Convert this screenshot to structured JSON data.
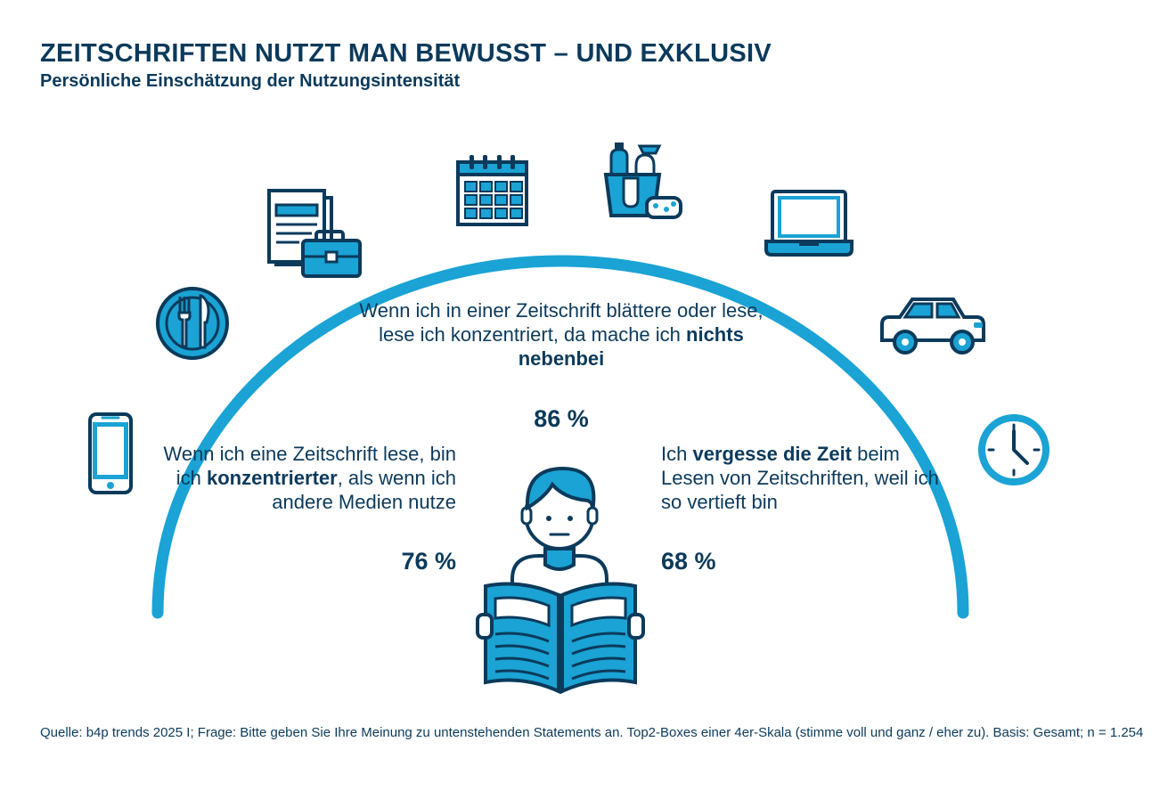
{
  "header": {
    "title": "ZEITSCHRIFTEN NUTZT MAN BEWUSST – UND EXKLUSIV",
    "subtitle": "Persönliche Einschätzung der Nutzungsintensität"
  },
  "statements": {
    "top": {
      "pre": "Wenn ich in einer Zeitschrift blättere oder lese, lese ich konzentriert, da mache ich ",
      "bold": "nichts nebenbei",
      "post": "",
      "value": "86 %"
    },
    "left": {
      "pre": "Wenn ich eine Zeitschrift lese, bin ich ",
      "bold": "konzentrierter",
      "post": ", als wenn ich andere Medien nutze",
      "value": "76 %"
    },
    "right": {
      "pre": "Ich ",
      "bold": "vergesse die Zeit",
      "post": " beim Lesen von Zeitschriften, weil ich so vertieft bin",
      "value": "68 %"
    }
  },
  "icons": [
    "smartphone-icon",
    "cutlery-icon",
    "documents-briefcase-icon",
    "calendar-icon",
    "cleaning-bucket-icon",
    "laptop-icon",
    "car-icon",
    "clock-icon",
    "reader-icon"
  ],
  "colors": {
    "navy": "#0b3a5b",
    "accent": "#1aa3d4"
  },
  "footer": {
    "source": "Quelle: b4p trends 2025 I; Frage: Bitte geben Sie Ihre Meinung zu untenstehenden Statements an. Top2-Boxes einer 4er-Skala (stimme  voll und ganz / eher zu). Basis: Gesamt; n = 1.254"
  }
}
